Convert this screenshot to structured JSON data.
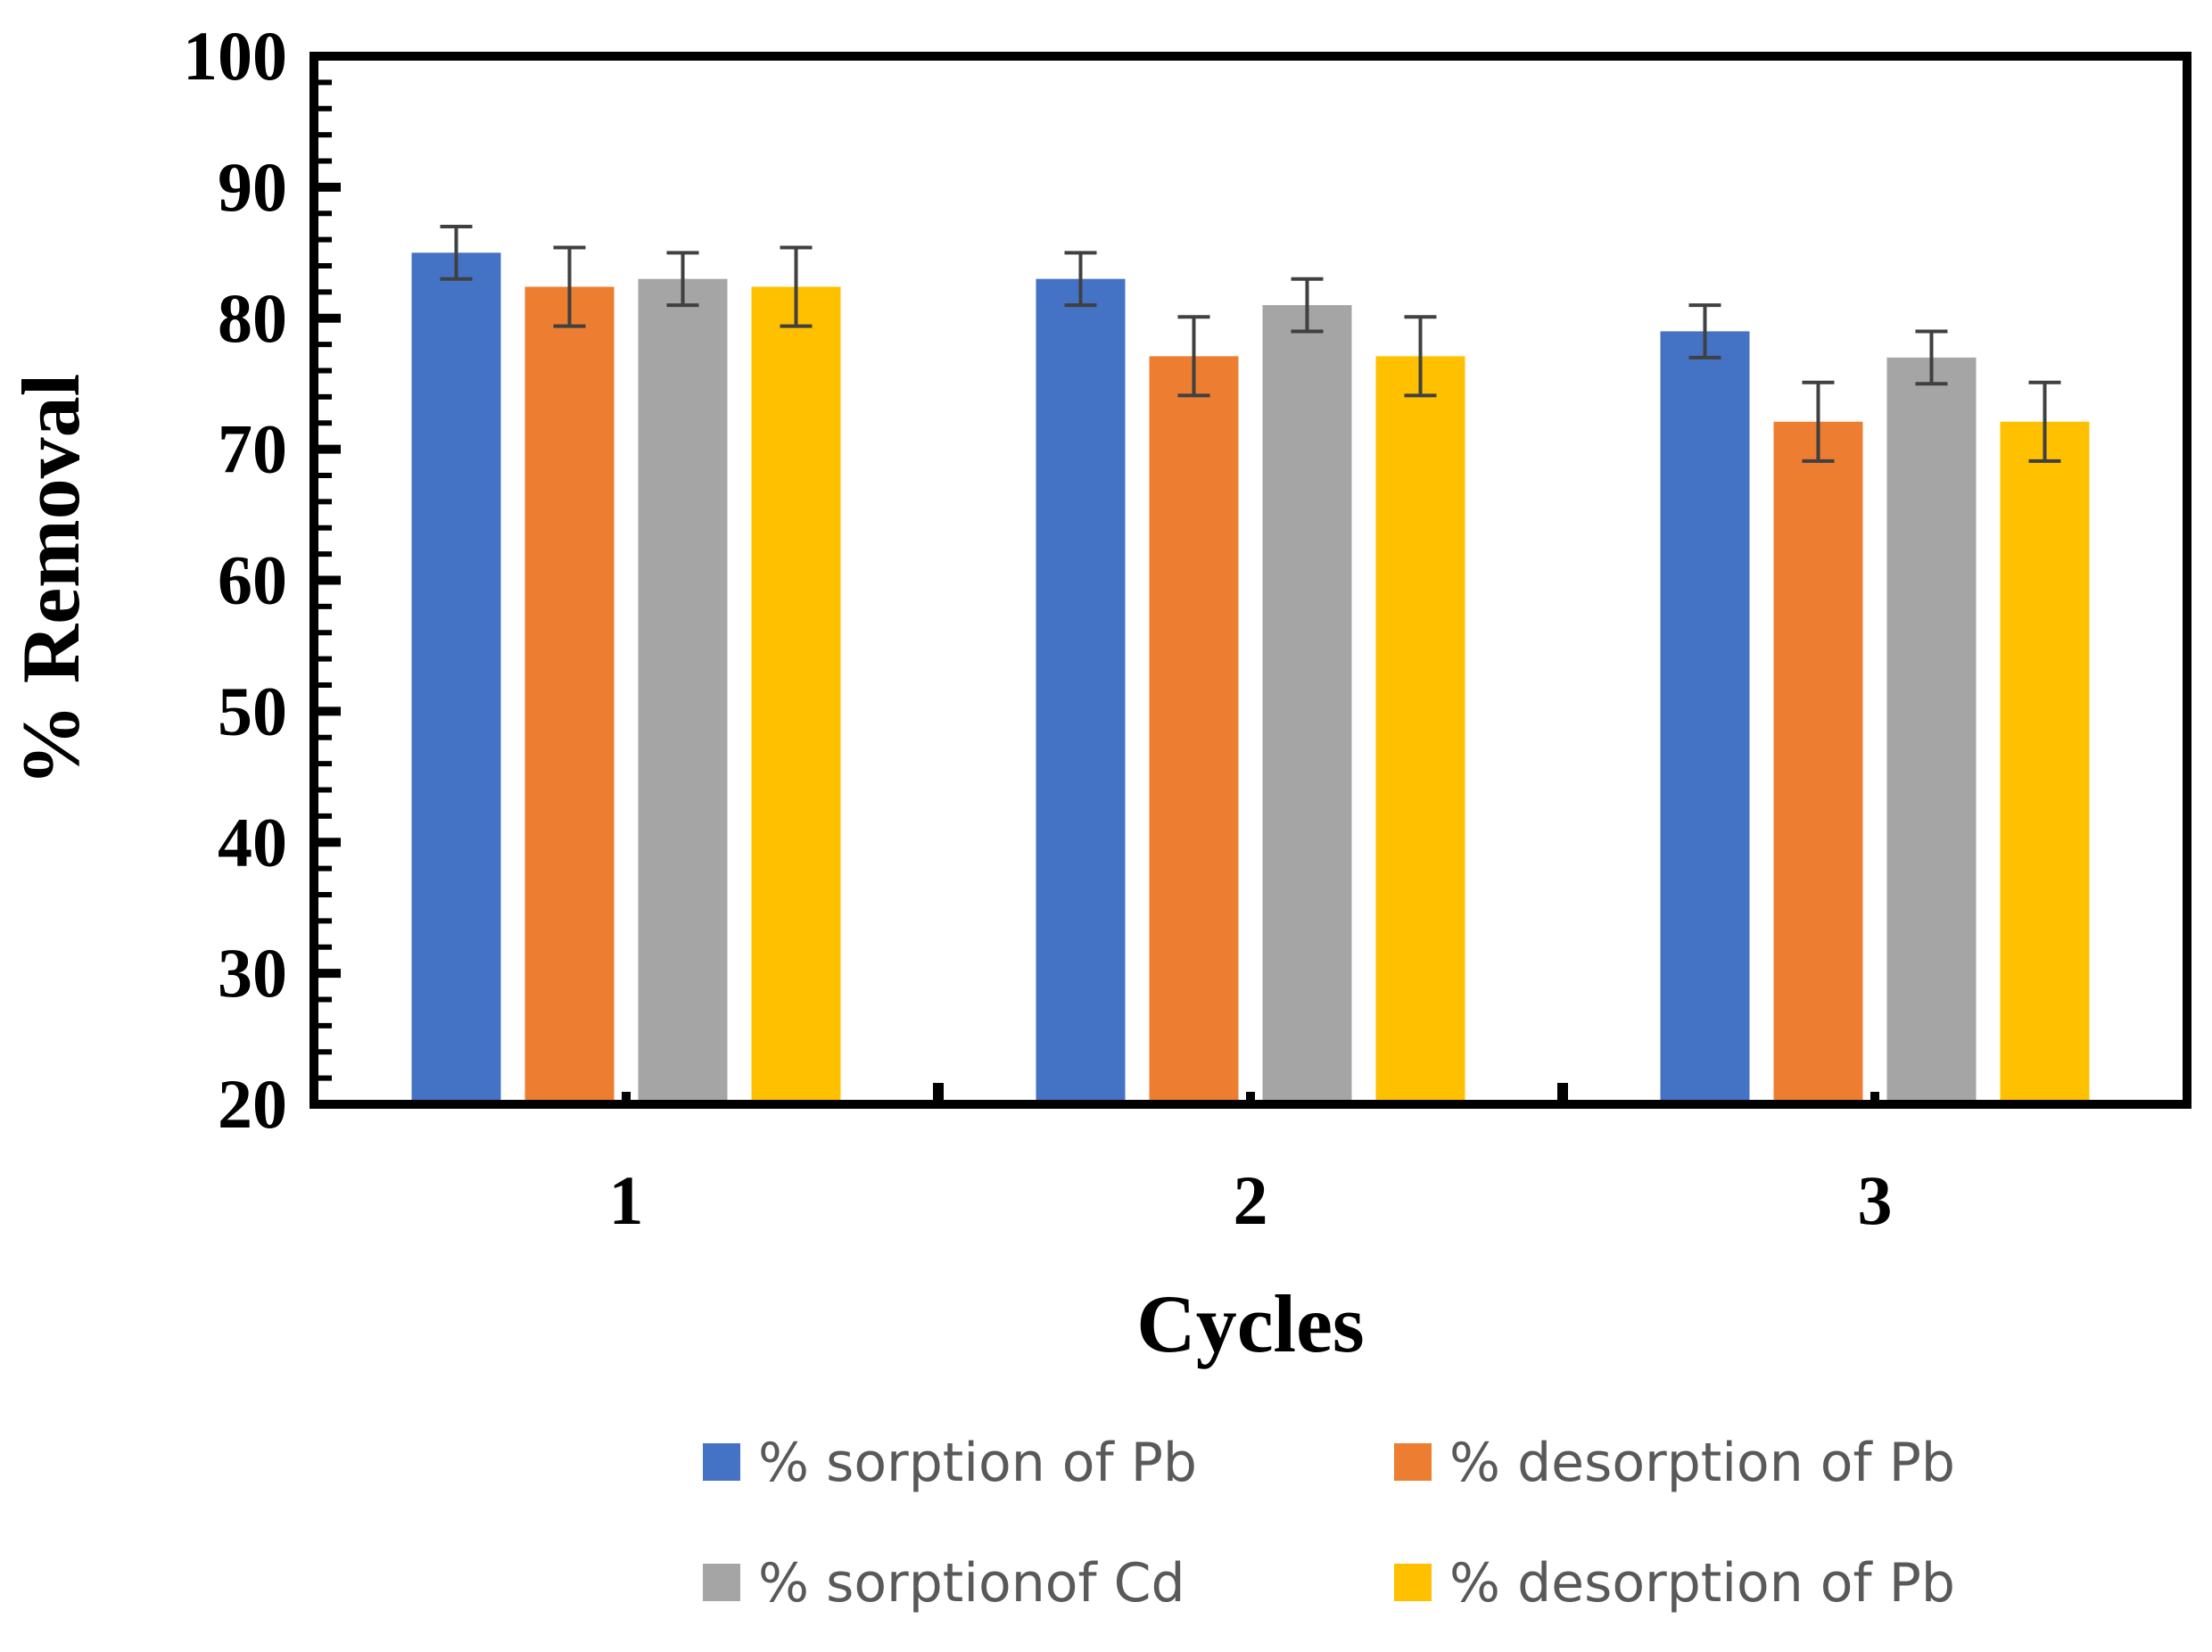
{
  "chart_data": {
    "type": "bar",
    "title": "",
    "xlabel": "Cycles",
    "ylabel": "% Removal",
    "categories": [
      "1",
      "2",
      "3"
    ],
    "ylim": [
      20,
      100
    ],
    "yticks": [
      20,
      30,
      40,
      50,
      60,
      70,
      80,
      90,
      100
    ],
    "ytick_labels": [
      "20",
      "30",
      "40",
      "50",
      "60",
      "70",
      "80",
      "90",
      "100"
    ],
    "grid": false,
    "legend_position": "bottom",
    "series": [
      {
        "name": "% sorption of Pb",
        "color": "#4472C4",
        "values": [
          85,
          83,
          79
        ],
        "errors": [
          2,
          2,
          2
        ]
      },
      {
        "name": "% desorption of Pb",
        "color": "#ED7D31",
        "values": [
          82.4,
          77.1,
          72.1
        ],
        "errors": [
          3,
          3,
          3
        ]
      },
      {
        "name": "% sorptionof Cd",
        "color": "#A5A5A5",
        "values": [
          83,
          81,
          77
        ],
        "errors": [
          2,
          2,
          2
        ]
      },
      {
        "name": "% desorption of Pb",
        "color": "#FFC000",
        "values": [
          82.4,
          77.1,
          72.1
        ],
        "errors": [
          3,
          3,
          3
        ]
      }
    ]
  }
}
